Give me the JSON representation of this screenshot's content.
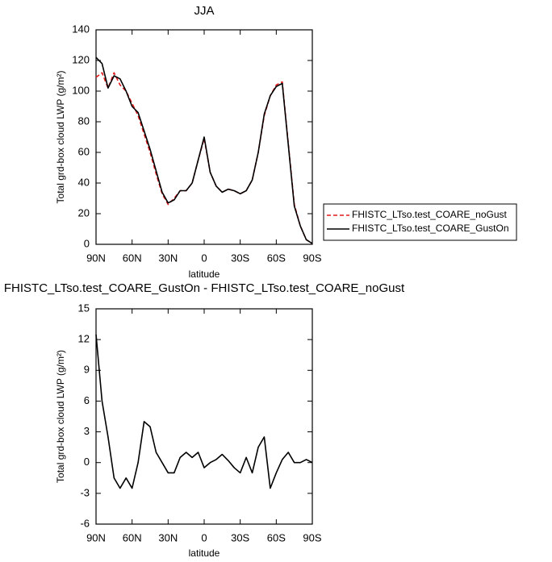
{
  "chart_data": [
    {
      "type": "line",
      "title": "JJA",
      "xlabel": "latitude",
      "ylabel": "Total grd-box cloud LWP (g/m²)",
      "x": [
        90,
        85,
        80,
        75,
        70,
        65,
        60,
        55,
        50,
        45,
        40,
        35,
        30,
        25,
        20,
        15,
        10,
        5,
        0,
        -5,
        -10,
        -15,
        -20,
        -25,
        -30,
        -35,
        -40,
        -45,
        -50,
        -55,
        -60,
        -65,
        -70,
        -75,
        -80,
        -85,
        -90
      ],
      "series": [
        {
          "name": "FHISTC_LTso.test_COARE_noGust",
          "color": "#e41a1c",
          "dash": true,
          "values": [
            109,
            112,
            102,
            112,
            104,
            100,
            92,
            84,
            72,
            60,
            46,
            33,
            26,
            30,
            35,
            35,
            40,
            55,
            69,
            47,
            38,
            34,
            36,
            35,
            33,
            35,
            42,
            60,
            84,
            97,
            104,
            106,
            66,
            26,
            12,
            3,
            0.5
          ]
        },
        {
          "name": "FHISTC_LTso.test_COARE_GustOn",
          "color": "#000000",
          "dash": false,
          "values": [
            122,
            118,
            102,
            110,
            108,
            100,
            90,
            86,
            74,
            62,
            48,
            34,
            27,
            29,
            35,
            35,
            40,
            55,
            70,
            47,
            38,
            34,
            36,
            35,
            33,
            35,
            42,
            60,
            85,
            97,
            103,
            105,
            65,
            25,
            12,
            3,
            0.5
          ]
        }
      ],
      "xlim": [
        90,
        -90
      ],
      "xticks": [
        {
          "value": 90,
          "label": "90N"
        },
        {
          "value": 60,
          "label": "60N"
        },
        {
          "value": 30,
          "label": "30N"
        },
        0,
        {
          "value": -30,
          "label": "30S"
        },
        {
          "value": -60,
          "label": "60S"
        },
        {
          "value": -90,
          "label": "90S"
        }
      ],
      "ylim": [
        0,
        140
      ],
      "yticks": [
        0,
        20,
        40,
        60,
        80,
        100,
        120,
        140
      ],
      "legend": "right"
    },
    {
      "type": "line",
      "title": "FHISTC_LTso.test_COARE_GustOn - FHISTC_LTso.test_COARE_noGust",
      "xlabel": "latitude",
      "ylabel": "Total grd-box cloud LWP (g/m²)",
      "x": [
        90,
        85,
        80,
        75,
        70,
        65,
        60,
        55,
        50,
        45,
        40,
        35,
        30,
        25,
        20,
        15,
        10,
        5,
        0,
        -5,
        -10,
        -15,
        -20,
        -25,
        -30,
        -35,
        -40,
        -45,
        -50,
        -55,
        -60,
        -65,
        -70,
        -75,
        -80,
        -85,
        -90
      ],
      "series": [
        {
          "color": "#000000",
          "dash": false,
          "values": [
            12.5,
            6,
            2.5,
            -1.5,
            -2.5,
            -1.5,
            -2.5,
            0,
            4,
            3.5,
            1,
            0,
            -1,
            -1,
            0.5,
            1,
            0.5,
            1,
            -0.5,
            0,
            0.3,
            0.8,
            0.2,
            -0.5,
            -1,
            0.5,
            -1,
            1.5,
            2.5,
            -2.5,
            -1,
            0.3,
            1,
            0,
            0,
            0.3,
            0
          ]
        }
      ],
      "xlim": [
        90,
        -90
      ],
      "xticks": [
        {
          "value": 90,
          "label": "90N"
        },
        {
          "value": 60,
          "label": "60N"
        },
        {
          "value": 30,
          "label": "30N"
        },
        0,
        {
          "value": -30,
          "label": "30S"
        },
        {
          "value": -60,
          "label": "60S"
        },
        {
          "value": -90,
          "label": "90S"
        }
      ],
      "ylim": [
        -6,
        15
      ],
      "yticks": [
        -6,
        -3,
        0,
        3,
        6,
        9,
        12,
        15
      ]
    }
  ]
}
